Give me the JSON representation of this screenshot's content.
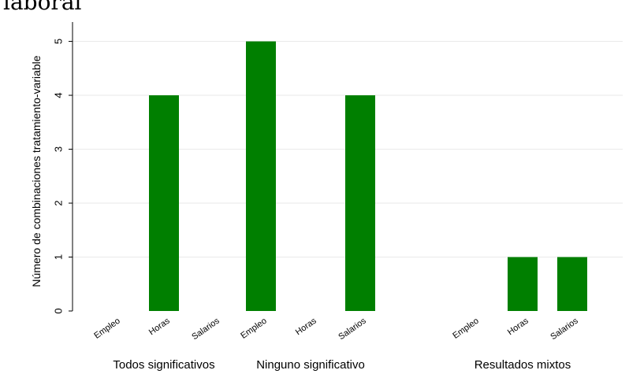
{
  "chart_data": {
    "type": "bar",
    "title": "laboral",
    "xlabel": "",
    "ylabel": "Número de combinaciones tratamiento-variable",
    "ylim": [
      0,
      5.3
    ],
    "yticks": [
      0,
      1,
      2,
      3,
      4,
      5
    ],
    "grid": true,
    "bar_color": "#007f00",
    "categories": [
      "Empleo",
      "Horas",
      "Salarios"
    ],
    "groups": [
      {
        "name": "Todos significativos",
        "values": [
          0,
          4,
          0
        ]
      },
      {
        "name": "Ninguno significativo",
        "values": [
          5,
          0,
          4
        ]
      },
      {
        "name": "Resultados mixtos",
        "values": [
          0,
          1,
          1
        ]
      }
    ]
  }
}
